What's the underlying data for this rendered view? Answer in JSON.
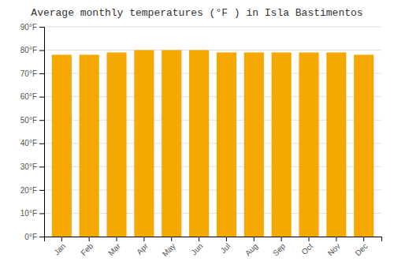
{
  "chart_data": {
    "type": "bar",
    "title": "Average monthly temperatures (°F ) in Isla Bastimentos",
    "categories": [
      "Jan",
      "Feb",
      "Mar",
      "Apr",
      "May",
      "Jun",
      "Jul",
      "Aug",
      "Sep",
      "Oct",
      "Nov",
      "Dec"
    ],
    "values": [
      78,
      78,
      79,
      80,
      80,
      80,
      79,
      79,
      79,
      79,
      79,
      78
    ],
    "color": "#F5A800",
    "ylim": [
      0,
      90
    ],
    "yticks": [
      {
        "value": 0,
        "label": "0°F"
      },
      {
        "value": 10,
        "label": "10°F"
      },
      {
        "value": 20,
        "label": "20°F"
      },
      {
        "value": 30,
        "label": "30°F"
      },
      {
        "value": 40,
        "label": "40°F"
      },
      {
        "value": 50,
        "label": "50°F"
      },
      {
        "value": 60,
        "label": "60°F"
      },
      {
        "value": 70,
        "label": "70°F"
      },
      {
        "value": 80,
        "label": "80°F"
      },
      {
        "value": 90,
        "label": "90°F"
      }
    ],
    "grid": true
  }
}
